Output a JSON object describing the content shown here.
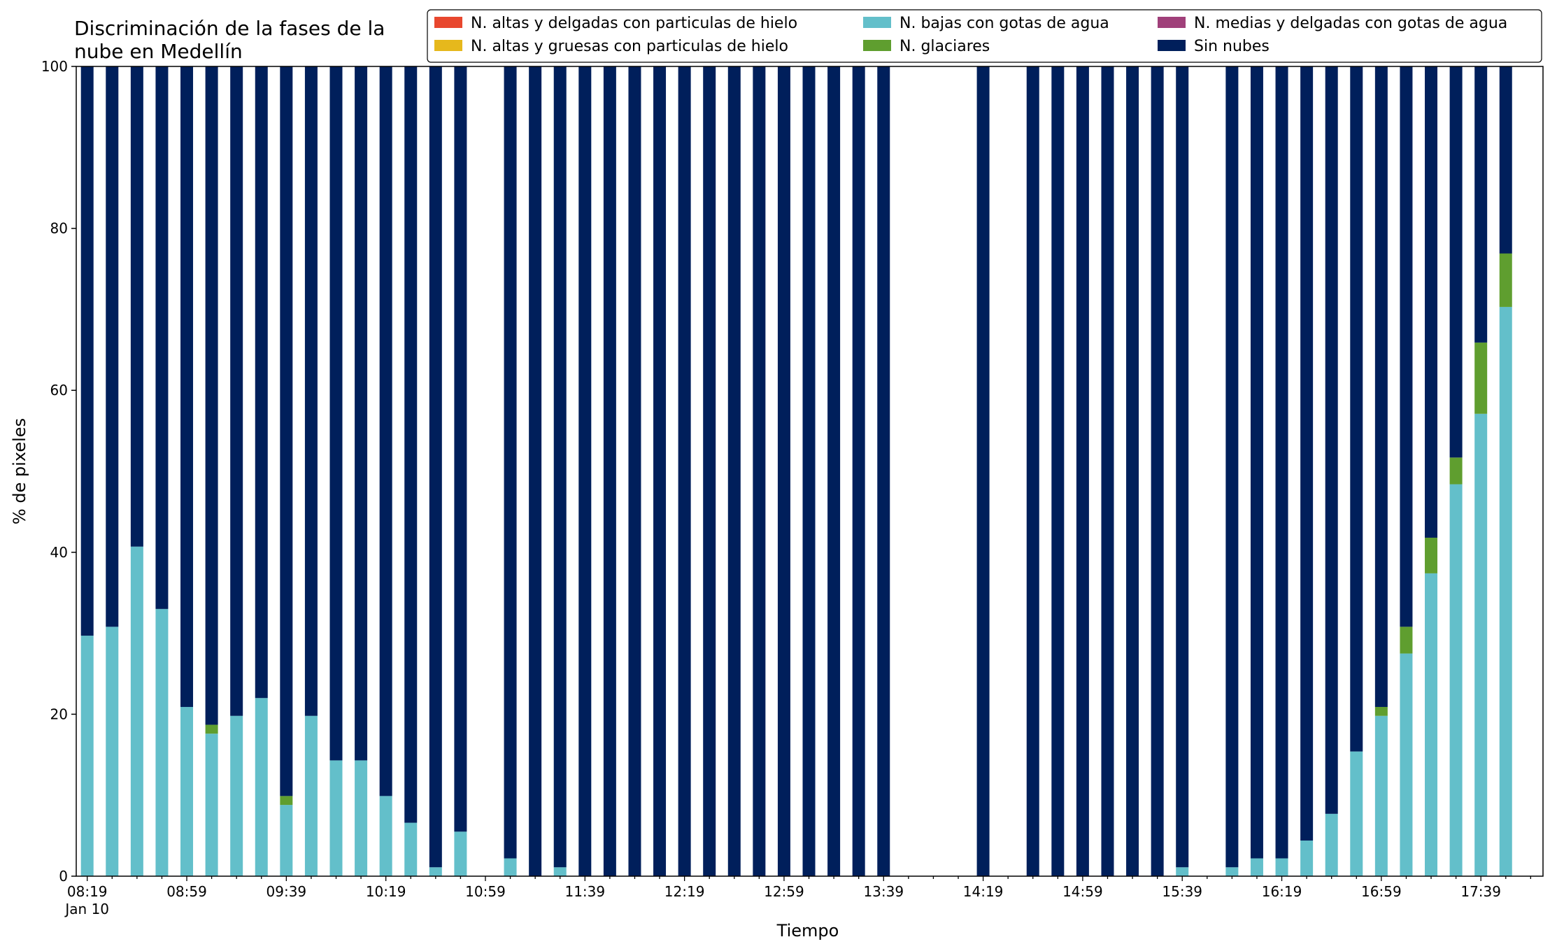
{
  "chart_data": {
    "type": "bar",
    "stacked": true,
    "title_lines": [
      "Discriminación de la fases de la",
      "nube en Medellín"
    ],
    "xlabel": "Tiempo",
    "ylabel": "% de pixeles",
    "ylim": [
      0,
      100
    ],
    "yticks": [
      0,
      20,
      40,
      60,
      80,
      100
    ],
    "grid": false,
    "legend_position": "top-right",
    "x": [
      "08:19",
      "08:29",
      "08:39",
      "08:49",
      "08:59",
      "09:09",
      "09:19",
      "09:29",
      "09:39",
      "09:49",
      "09:59",
      "10:09",
      "10:19",
      "10:29",
      "10:39",
      "10:49",
      "10:59",
      "11:09",
      "11:19",
      "11:29",
      "11:39",
      "11:49",
      "11:59",
      "12:09",
      "12:19",
      "12:29",
      "12:39",
      "12:49",
      "12:59",
      "13:09",
      "13:19",
      "13:29",
      "13:39",
      "13:49",
      "13:59",
      "14:09",
      "14:19",
      "14:29",
      "14:39",
      "14:49",
      "14:59",
      "15:09",
      "15:19",
      "15:29",
      "15:39",
      "15:49",
      "15:59",
      "16:09",
      "16:19",
      "16:29",
      "16:39",
      "16:49",
      "16:59",
      "17:09",
      "17:19",
      "17:29",
      "17:39",
      "17:49"
    ],
    "x_tick_labels": [
      "08:19",
      "08:59",
      "09:39",
      "10:19",
      "10:59",
      "11:39",
      "12:19",
      "12:59",
      "13:39",
      "14:19",
      "14:59",
      "15:39",
      "16:19",
      "16:59",
      "17:39"
    ],
    "x_date_label": "Jan 10",
    "legend_columns": 3,
    "series": [
      {
        "name": "N. altas y delgadas con particulas de hielo",
        "color": "#e8472e",
        "values": [
          0,
          0,
          0,
          0,
          0,
          0,
          0,
          0,
          0,
          0,
          0,
          0,
          0,
          0,
          0,
          0,
          0,
          0,
          0,
          0,
          0,
          0,
          0,
          0,
          0,
          0,
          0,
          0,
          0,
          0,
          0,
          0,
          0,
          null,
          null,
          null,
          0,
          null,
          0,
          0,
          0,
          0,
          0,
          0,
          0,
          null,
          0,
          0,
          0,
          0,
          0,
          0,
          0,
          0,
          0,
          0,
          0,
          0
        ]
      },
      {
        "name": "N. altas y gruesas con particulas de hielo",
        "color": "#e6b81c",
        "values": [
          0,
          0,
          0,
          0,
          0,
          0,
          0,
          0,
          0,
          0,
          0,
          0,
          0,
          0,
          0,
          0,
          0,
          0,
          0,
          0,
          0,
          0,
          0,
          0,
          0,
          0,
          0,
          0,
          0,
          0,
          0,
          0,
          0,
          null,
          null,
          null,
          0,
          null,
          0,
          0,
          0,
          0,
          0,
          0,
          0,
          null,
          0,
          0,
          0,
          0,
          0,
          0,
          0,
          0,
          0,
          0,
          0,
          0
        ]
      },
      {
        "name": "N. bajas con gotas de agua",
        "color": "#63bfca",
        "values": [
          29.7,
          30.8,
          40.7,
          33.0,
          20.9,
          17.6,
          19.8,
          22.0,
          8.8,
          19.8,
          14.3,
          14.3,
          9.9,
          6.6,
          1.1,
          5.5,
          null,
          2.2,
          0,
          1.1,
          0,
          0,
          0,
          0,
          0,
          0,
          0,
          0,
          0,
          0,
          0,
          0,
          0,
          null,
          null,
          null,
          0,
          null,
          0,
          0,
          0,
          0,
          0,
          0,
          1.1,
          null,
          1.1,
          2.2,
          2.2,
          4.4,
          7.7,
          15.4,
          19.8,
          27.5,
          37.4,
          48.4,
          57.1,
          70.3
        ]
      },
      {
        "name": "N. glaciares",
        "color": "#5f9e2f",
        "values": [
          0,
          0,
          0,
          0,
          0,
          1.1,
          0,
          0,
          1.1,
          0,
          0,
          0,
          0,
          0,
          0,
          0,
          null,
          0,
          0,
          0,
          0,
          0,
          0,
          0,
          0,
          0,
          0,
          0,
          0,
          0,
          0,
          0,
          0,
          null,
          null,
          null,
          0,
          null,
          0,
          0,
          0,
          0,
          0,
          0,
          0,
          null,
          0,
          0,
          0,
          0,
          0,
          0,
          1.1,
          3.3,
          4.4,
          3.3,
          8.8,
          6.6
        ]
      },
      {
        "name": "N. medias y delgadas con gotas de agua",
        "color": "#a0407a",
        "values": [
          0,
          0,
          0,
          0,
          0,
          0,
          0,
          0,
          0,
          0,
          0,
          0,
          0,
          0,
          0,
          0,
          0,
          0,
          0,
          0,
          0,
          0,
          0,
          0,
          0,
          0,
          0,
          0,
          0,
          0,
          0,
          0,
          0,
          null,
          null,
          null,
          0,
          null,
          0,
          0,
          0,
          0,
          0,
          0,
          0,
          null,
          0,
          0,
          0,
          0,
          0,
          0,
          0,
          0,
          0,
          0,
          0,
          0
        ]
      },
      {
        "name": "Sin nubes",
        "color": "#001f5b",
        "values": [
          70.3,
          69.2,
          59.3,
          67.0,
          79.1,
          81.3,
          80.2,
          78.0,
          90.1,
          80.2,
          85.7,
          85.7,
          90.1,
          93.4,
          98.9,
          94.5,
          null,
          97.8,
          100,
          98.9,
          100,
          100,
          100,
          100,
          100,
          100,
          100,
          100,
          100,
          100,
          100,
          100,
          100,
          null,
          null,
          null,
          100,
          null,
          100,
          100,
          100,
          100,
          100,
          100,
          98.9,
          null,
          98.9,
          97.8,
          97.8,
          95.6,
          92.3,
          84.6,
          79.1,
          69.2,
          58.2,
          48.3,
          34.1,
          23.1
        ]
      }
    ]
  }
}
